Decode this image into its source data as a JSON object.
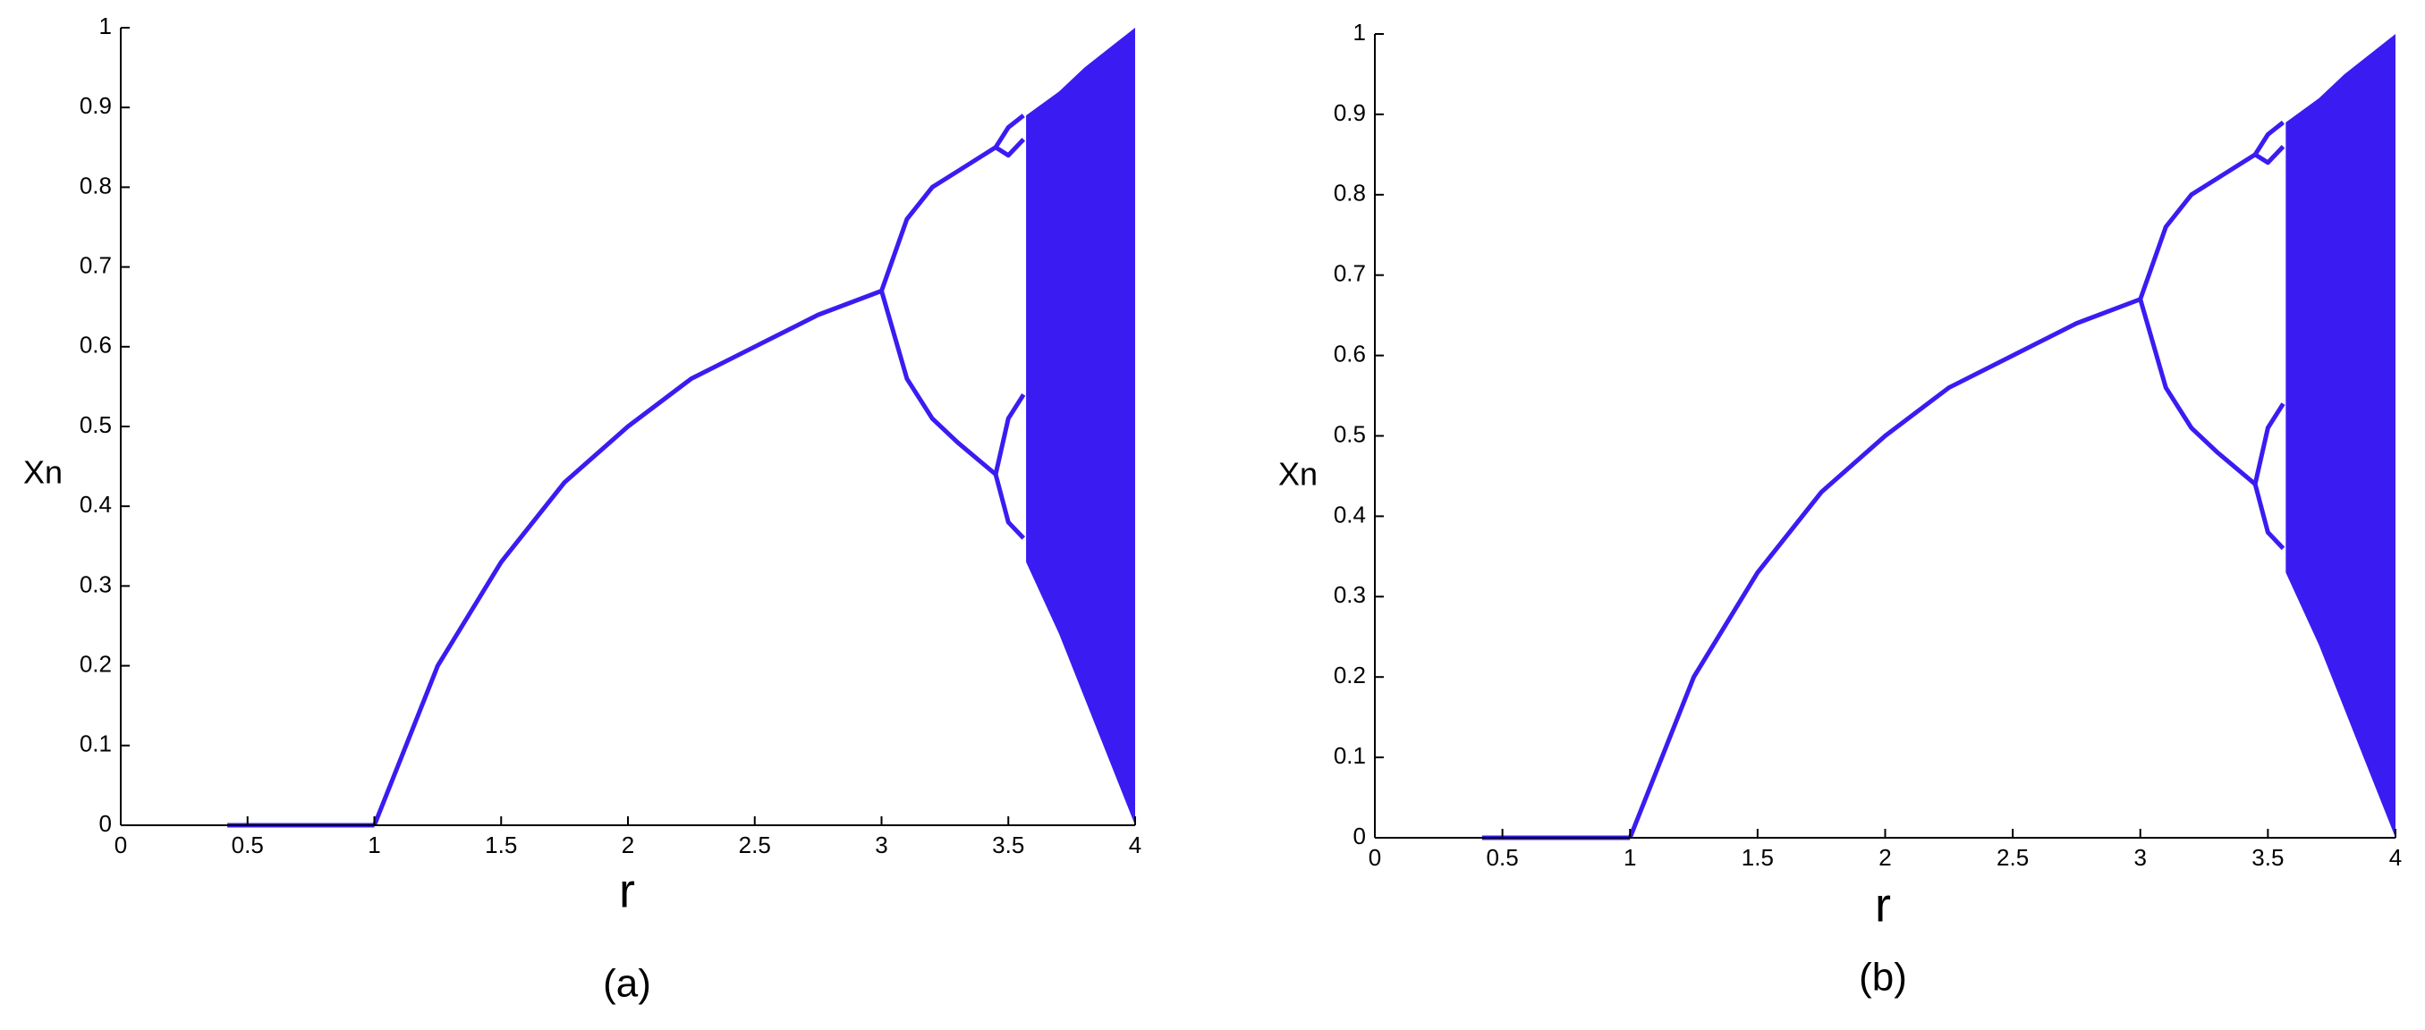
{
  "chart_data": [
    {
      "type": "line",
      "xlabel": "r",
      "ylabel": "Xn",
      "caption": "(a)",
      "xlim": [
        0,
        4
      ],
      "ylim": [
        0,
        1
      ],
      "xticks": [
        0,
        0.5,
        1,
        1.5,
        2,
        2.5,
        3,
        3.5,
        4
      ],
      "yticks": [
        0,
        0.1,
        0.2,
        0.3,
        0.4,
        0.5,
        0.6,
        0.7,
        0.8,
        0.9,
        1
      ],
      "series": [
        {
          "color": "#3a1cf2",
          "x": [
            0.42,
            0.7,
            0.95,
            1
          ],
          "values": [
            0,
            0,
            0,
            0
          ]
        },
        {
          "color": "#3a1cf2",
          "x": [
            1,
            1.25,
            1.5,
            1.75,
            2,
            2.25,
            2.5,
            2.75,
            3
          ],
          "values": [
            0,
            0.2,
            0.33,
            0.43,
            0.5,
            0.56,
            0.6,
            0.64,
            0.67
          ]
        },
        {
          "color": "#3a1cf2",
          "x": [
            3,
            3.1,
            3.2,
            3.3,
            3.45
          ],
          "values": [
            0.67,
            0.76,
            0.8,
            0.82,
            0.85
          ]
        },
        {
          "color": "#3a1cf2",
          "x": [
            3,
            3.1,
            3.2,
            3.3,
            3.45
          ],
          "values": [
            0.67,
            0.56,
            0.51,
            0.48,
            0.44
          ]
        },
        {
          "color": "#3a1cf2",
          "x": [
            3.45,
            3.5,
            3.56
          ],
          "values": [
            0.85,
            0.875,
            0.89
          ]
        },
        {
          "color": "#3a1cf2",
          "x": [
            3.45,
            3.5,
            3.56
          ],
          "values": [
            0.85,
            0.84,
            0.86
          ]
        },
        {
          "color": "#3a1cf2",
          "x": [
            3.45,
            3.5,
            3.56
          ],
          "values": [
            0.44,
            0.51,
            0.54
          ]
        },
        {
          "color": "#3a1cf2",
          "x": [
            3.45,
            3.5,
            3.56
          ],
          "values": [
            0.44,
            0.38,
            0.36
          ]
        }
      ],
      "band": {
        "color": "#3a1cf2",
        "x": [
          3.57,
          3.7,
          3.8,
          3.9,
          4
        ],
        "values": [
          0.89,
          0.92,
          0.95,
          0.975,
          1
        ],
        "low": [
          0.33,
          0.24,
          0.16,
          0.08,
          0
        ]
      }
    },
    {
      "type": "line",
      "xlabel": "r",
      "ylabel": "Xn",
      "caption": "(b)",
      "xlim": [
        0,
        4
      ],
      "ylim": [
        0,
        1
      ],
      "xticks": [
        0,
        0.5,
        1,
        1.5,
        2,
        2.5,
        3,
        3.5,
        4
      ],
      "yticks": [
        0,
        0.1,
        0.2,
        0.3,
        0.4,
        0.5,
        0.6,
        0.7,
        0.8,
        0.9,
        1
      ],
      "series": [
        {
          "color": "#3a1cf2",
          "x": [
            0.42,
            0.7,
            0.95,
            1
          ],
          "values": [
            0,
            0,
            0,
            0
          ]
        },
        {
          "color": "#3a1cf2",
          "x": [
            1,
            1.25,
            1.5,
            1.75,
            2,
            2.25,
            2.5,
            2.75,
            3
          ],
          "values": [
            0,
            0.2,
            0.33,
            0.43,
            0.5,
            0.56,
            0.6,
            0.64,
            0.67
          ]
        },
        {
          "color": "#3a1cf2",
          "x": [
            3,
            3.1,
            3.2,
            3.3,
            3.45
          ],
          "values": [
            0.67,
            0.76,
            0.8,
            0.82,
            0.85
          ]
        },
        {
          "color": "#3a1cf2",
          "x": [
            3,
            3.1,
            3.2,
            3.3,
            3.45
          ],
          "values": [
            0.67,
            0.56,
            0.51,
            0.48,
            0.44
          ]
        },
        {
          "color": "#3a1cf2",
          "x": [
            3.45,
            3.5,
            3.56
          ],
          "values": [
            0.85,
            0.875,
            0.89
          ]
        },
        {
          "color": "#3a1cf2",
          "x": [
            3.45,
            3.5,
            3.56
          ],
          "values": [
            0.85,
            0.84,
            0.86
          ]
        },
        {
          "color": "#3a1cf2",
          "x": [
            3.45,
            3.5,
            3.56
          ],
          "values": [
            0.44,
            0.51,
            0.54
          ]
        },
        {
          "color": "#3a1cf2",
          "x": [
            3.45,
            3.5,
            3.56
          ],
          "values": [
            0.44,
            0.38,
            0.36
          ]
        }
      ],
      "band": {
        "color": "#3a1cf2",
        "x": [
          3.57,
          3.7,
          3.8,
          3.9,
          4
        ],
        "values": [
          0.89,
          0.92,
          0.95,
          0.975,
          1
        ],
        "low": [
          0.33,
          0.24,
          0.16,
          0.08,
          0
        ]
      }
    }
  ]
}
